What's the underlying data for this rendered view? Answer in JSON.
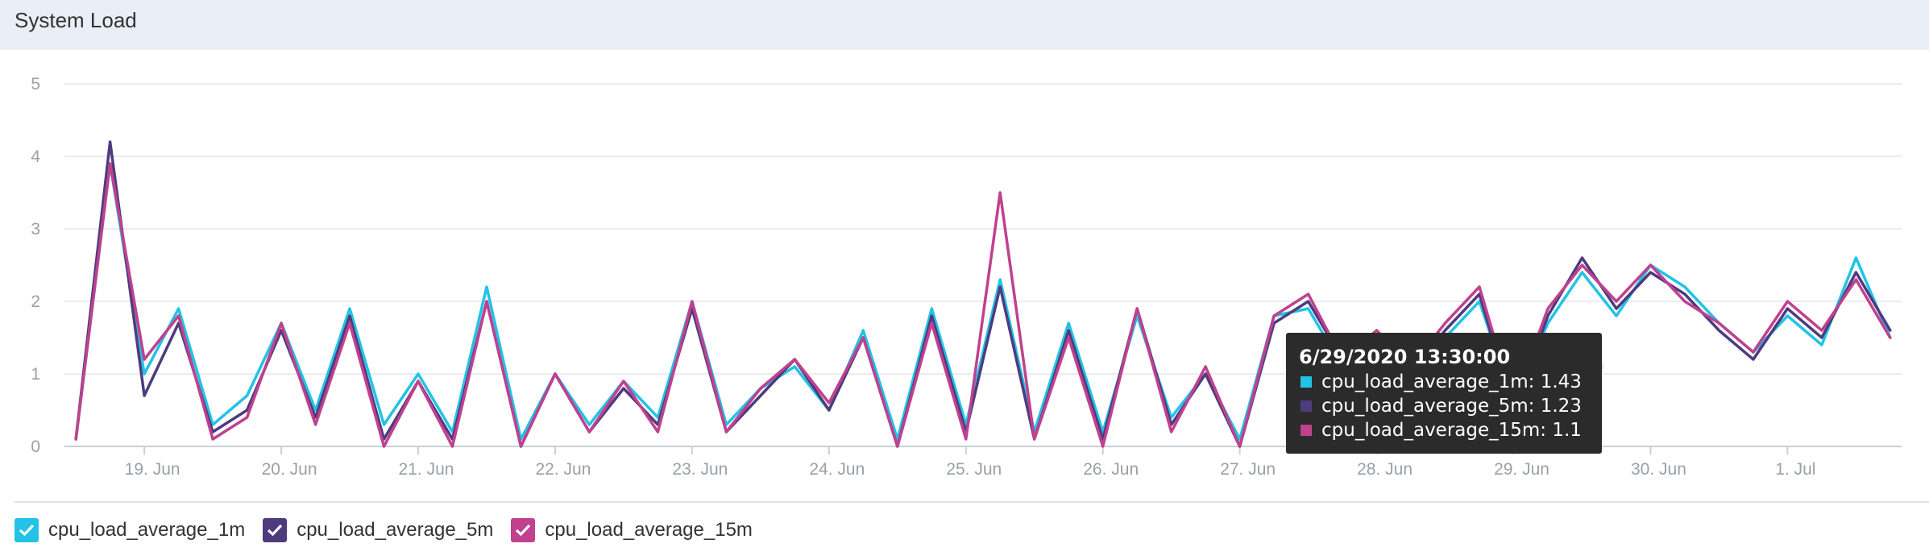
{
  "panel": {
    "title": "System Load"
  },
  "colors": {
    "series_1m": "#22c3e6",
    "series_5m": "#4e3b7e",
    "series_15m": "#c0418e"
  },
  "chart_data": {
    "type": "line",
    "title": "System Load",
    "xlabel": "",
    "ylabel": "",
    "ylim": [
      0,
      5
    ],
    "yticks": [
      "0",
      "1",
      "2",
      "3",
      "4",
      "5"
    ],
    "xlim": [
      "2020-06-18T10:00",
      "2020-07-01T20:00"
    ],
    "xticks": [
      {
        "t": "2020-06-19T00:00",
        "label": "19. Jun"
      },
      {
        "t": "2020-06-20T00:00",
        "label": "20. Jun"
      },
      {
        "t": "2020-06-21T00:00",
        "label": "21. Jun"
      },
      {
        "t": "2020-06-22T00:00",
        "label": "22. Jun"
      },
      {
        "t": "2020-06-23T00:00",
        "label": "23. Jun"
      },
      {
        "t": "2020-06-24T00:00",
        "label": "24. Jun"
      },
      {
        "t": "2020-06-25T00:00",
        "label": "25. Jun"
      },
      {
        "t": "2020-06-26T00:00",
        "label": "26. Jun"
      },
      {
        "t": "2020-06-27T00:00",
        "label": "27. Jun"
      },
      {
        "t": "2020-06-28T00:00",
        "label": "28. Jun"
      },
      {
        "t": "2020-06-29T00:00",
        "label": "29. Jun"
      },
      {
        "t": "2020-06-30T00:00",
        "label": "30. Jun"
      },
      {
        "t": "2020-07-01T00:00",
        "label": "1. Jul"
      }
    ],
    "grid": true,
    "legend": "bottom-left",
    "x": [
      "2020-06-18T12:00",
      "2020-06-18T18:00",
      "2020-06-19T00:00",
      "2020-06-19T06:00",
      "2020-06-19T12:00",
      "2020-06-19T18:00",
      "2020-06-20T00:00",
      "2020-06-20T06:00",
      "2020-06-20T12:00",
      "2020-06-20T18:00",
      "2020-06-21T00:00",
      "2020-06-21T06:00",
      "2020-06-21T12:00",
      "2020-06-21T18:00",
      "2020-06-22T00:00",
      "2020-06-22T06:00",
      "2020-06-22T12:00",
      "2020-06-22T18:00",
      "2020-06-23T00:00",
      "2020-06-23T06:00",
      "2020-06-23T12:00",
      "2020-06-23T18:00",
      "2020-06-24T00:00",
      "2020-06-24T06:00",
      "2020-06-24T12:00",
      "2020-06-24T18:00",
      "2020-06-25T00:00",
      "2020-06-25T06:00",
      "2020-06-25T12:00",
      "2020-06-25T18:00",
      "2020-06-26T00:00",
      "2020-06-26T06:00",
      "2020-06-26T12:00",
      "2020-06-26T18:00",
      "2020-06-27T00:00",
      "2020-06-27T06:00",
      "2020-06-27T12:00",
      "2020-06-27T18:00",
      "2020-06-28T00:00",
      "2020-06-28T06:00",
      "2020-06-28T12:00",
      "2020-06-28T18:00",
      "2020-06-29T00:00",
      "2020-06-29T06:00",
      "2020-06-29T12:00",
      "2020-06-29T18:00",
      "2020-06-30T00:00",
      "2020-06-30T06:00",
      "2020-06-30T12:00",
      "2020-06-30T18:00",
      "2020-07-01T00:00",
      "2020-07-01T06:00",
      "2020-07-01T12:00",
      "2020-07-01T18:00"
    ],
    "series": [
      {
        "name": "cpu_load_average_1m",
        "values": [
          0.1,
          3.9,
          1.0,
          1.9,
          0.3,
          0.7,
          1.7,
          0.5,
          1.9,
          0.3,
          1.0,
          0.2,
          2.2,
          0.1,
          1.0,
          0.3,
          0.9,
          0.4,
          2.0,
          0.3,
          0.8,
          1.1,
          0.5,
          1.6,
          0.1,
          1.9,
          0.3,
          2.3,
          0.2,
          1.7,
          0.2,
          1.8,
          0.4,
          1.0,
          0.1,
          1.8,
          1.9,
          1.1,
          1.4,
          1.1,
          1.5,
          2.0,
          0.6,
          1.7,
          2.4,
          1.8,
          2.5,
          2.2,
          1.7,
          1.3,
          1.8,
          1.4,
          2.6,
          1.5
        ]
      },
      {
        "name": "cpu_load_average_5m",
        "values": [
          0.1,
          4.2,
          0.7,
          1.7,
          0.2,
          0.5,
          1.6,
          0.4,
          1.8,
          0.1,
          0.9,
          0.1,
          2.0,
          0.0,
          1.0,
          0.2,
          0.8,
          0.3,
          1.9,
          0.2,
          0.7,
          1.2,
          0.5,
          1.5,
          0.0,
          1.8,
          0.2,
          2.2,
          0.1,
          1.6,
          0.1,
          1.9,
          0.3,
          1.0,
          0.0,
          1.7,
          2.0,
          1.2,
          1.5,
          1.0,
          1.6,
          2.1,
          0.5,
          1.8,
          2.6,
          1.9,
          2.4,
          2.1,
          1.6,
          1.2,
          1.9,
          1.5,
          2.4,
          1.6
        ]
      },
      {
        "name": "cpu_load_average_15m",
        "values": [
          0.1,
          3.9,
          1.2,
          1.8,
          0.1,
          0.4,
          1.7,
          0.3,
          1.7,
          0.0,
          0.9,
          0.0,
          2.0,
          0.0,
          1.0,
          0.2,
          0.9,
          0.2,
          2.0,
          0.2,
          0.8,
          1.2,
          0.6,
          1.5,
          0.0,
          1.7,
          0.1,
          3.5,
          0.1,
          1.5,
          0.0,
          1.9,
          0.2,
          1.1,
          0.0,
          1.8,
          2.1,
          1.2,
          1.6,
          1.1,
          1.7,
          2.2,
          0.6,
          1.9,
          2.5,
          2.0,
          2.5,
          2.0,
          1.7,
          1.3,
          2.0,
          1.6,
          2.3,
          1.5
        ]
      }
    ]
  },
  "tooltip": {
    "title": "6/29/2020 13:30:00",
    "hover_time": "2020-06-29T13:30",
    "rows": [
      {
        "text": "cpu_load_average_1m: 1.43"
      },
      {
        "text": "cpu_load_average_5m: 1.23"
      },
      {
        "text": "cpu_load_average_15m: 1.1"
      }
    ]
  },
  "legend": {
    "items": [
      {
        "label": "cpu_load_average_1m"
      },
      {
        "label": "cpu_load_average_5m"
      },
      {
        "label": "cpu_load_average_15m"
      }
    ]
  }
}
